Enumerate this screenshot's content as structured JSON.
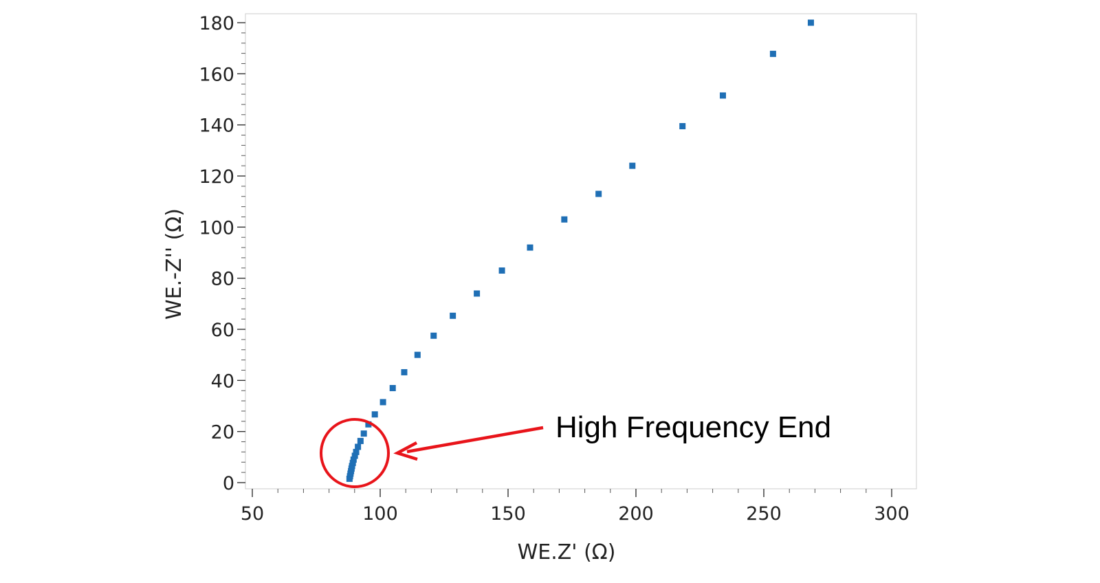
{
  "chart_data": {
    "type": "scatter",
    "title": "",
    "xlabel": "WE.Z' (Ω)",
    "ylabel": "WE.-Z'' (Ω)",
    "xlim": [
      47,
      309
    ],
    "ylim": [
      -2,
      184
    ],
    "x_ticks": [
      50,
      100,
      150,
      200,
      250,
      300
    ],
    "y_ticks": [
      0,
      20,
      40,
      60,
      80,
      100,
      120,
      140,
      160,
      180
    ],
    "x_minor_step": 10,
    "y_minor_step": 4,
    "grid": false,
    "legend": "none",
    "marker": "square",
    "marker_color": "#1f6fb5",
    "series": [
      {
        "x": [
          88.0,
          88.2,
          88.4,
          88.6,
          88.8,
          89.0,
          89.3,
          89.6,
          90.1,
          90.6,
          91.3,
          92.3,
          93.6,
          95.4,
          97.9,
          101.1,
          104.9,
          109.4,
          114.6,
          120.9,
          128.4,
          137.8,
          147.6,
          158.6,
          172.0,
          185.4,
          198.6,
          218.2,
          234.0,
          253.6,
          268.4
        ],
        "y": [
          1.5,
          2.5,
          3.5,
          4.5,
          5.5,
          6.5,
          7.7,
          9.0,
          10.5,
          12.0,
          14.0,
          16.3,
          19.2,
          22.8,
          26.7,
          31.5,
          37.0,
          43.2,
          50.0,
          57.5,
          65.3,
          74.0,
          83.0,
          92.0,
          103.0,
          113.0,
          124.0,
          139.5,
          151.5,
          167.8,
          180.0
        ]
      }
    ],
    "annotations": [
      {
        "text": "High Frequency End",
        "color": "#e8141a",
        "target": "high-frequency points near x≈90, y≈12"
      }
    ]
  }
}
